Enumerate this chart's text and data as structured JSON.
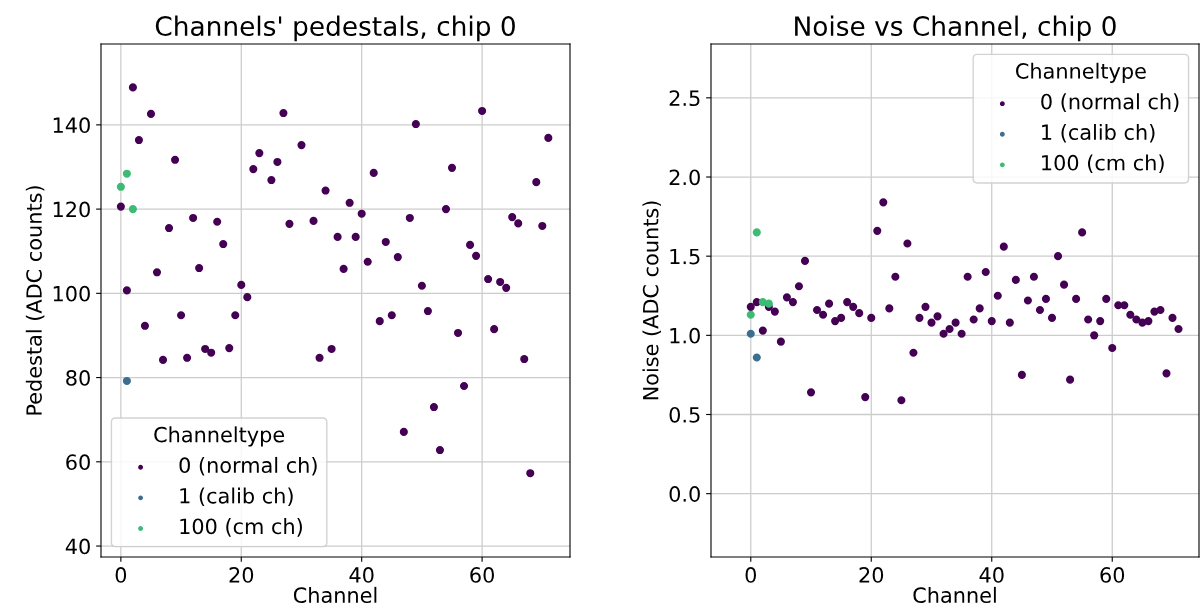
{
  "chart_data": [
    {
      "type": "scatter",
      "title": "Channels' pedestals, chip 0",
      "xlabel": "Channel",
      "ylabel": "Pedestal (ADC counts)",
      "legend_title": "Channeltype",
      "legend": "bottom left",
      "grid": true,
      "marker": "circle",
      "xlim": [
        -3.3,
        74.6
      ],
      "xticks": [
        0,
        20,
        40,
        60
      ],
      "ylim": [
        37.4,
        159.2
      ],
      "yticks": [
        40,
        60,
        80,
        100,
        120,
        140
      ],
      "series": [
        {
          "name": "0 (normal ch)",
          "color": "#440154",
          "x": [
            0,
            1,
            2,
            3,
            4,
            5,
            6,
            7,
            8,
            9,
            10,
            11,
            12,
            13,
            14,
            15,
            16,
            17,
            18,
            19,
            20,
            21,
            22,
            23,
            25,
            26,
            27,
            28,
            30,
            32,
            33,
            34,
            35,
            36,
            37,
            38,
            39,
            40,
            41,
            42,
            43,
            44,
            45,
            46,
            47,
            48,
            49,
            50,
            51,
            52,
            53,
            54,
            55,
            56,
            57,
            58,
            59,
            60,
            61,
            62,
            63,
            64,
            65,
            66,
            67,
            68,
            69,
            70,
            71
          ],
          "values": [
            120.6,
            100.7,
            148.9,
            136.4,
            92.3,
            142.6,
            105,
            84.2,
            115.5,
            131.7,
            94.8,
            84.7,
            117.9,
            106,
            86.8,
            85.9,
            117,
            111.7,
            87,
            94.8,
            102,
            99.1,
            129.5,
            133.3,
            126.9,
            131.2,
            142.8,
            116.5,
            135.2,
            117.2,
            84.7,
            124.4,
            86.8,
            113.4,
            105.8,
            121.5,
            113.4,
            118.9,
            107.5,
            128.6,
            93.4,
            112.2,
            94.8,
            108.6,
            67.1,
            117.9,
            140.2,
            101.8,
            95.8,
            73,
            62.8,
            120,
            129.8,
            90.6,
            78,
            111.5,
            108.9,
            143.3,
            103.4,
            91.5,
            102.7,
            101.3,
            118.1,
            116.6,
            84.4,
            57.3,
            126.4,
            116,
            136.9
          ]
        },
        {
          "name": "1 (calib ch)",
          "color": "#3b6e8f",
          "x": [
            1
          ],
          "values": [
            79.2
          ]
        },
        {
          "name": "100 (cm ch)",
          "color": "#3cbb75",
          "x": [
            0,
            1,
            2
          ],
          "values": [
            125.3,
            128.4,
            120
          ]
        }
      ]
    },
    {
      "type": "scatter",
      "title": "Noise vs Channel, chip 0",
      "xlabel": "Channel",
      "ylabel": "Noise (ADC counts)",
      "legend_title": "Channeltype",
      "legend": "top right",
      "grid": true,
      "marker": "circle",
      "xlim": [
        -6.6,
        74.4
      ],
      "xticks": [
        0,
        20,
        40,
        60
      ],
      "ylim": [
        -0.4,
        2.84
      ],
      "yticks": [
        {
          "value": 0,
          "label": "0.0"
        },
        {
          "value": 0.5,
          "label": "0.5"
        },
        {
          "value": 1,
          "label": "1.0"
        },
        {
          "value": 1.5,
          "label": "1.5"
        },
        {
          "value": 2,
          "label": "2.0"
        },
        {
          "value": 2.5,
          "label": "2.5"
        }
      ],
      "series": [
        {
          "name": "0 (normal ch)",
          "color": "#440154",
          "x": [
            0,
            1,
            2,
            3,
            4,
            5,
            6,
            7,
            8,
            9,
            10,
            11,
            12,
            13,
            14,
            15,
            16,
            17,
            18,
            19,
            20,
            21,
            22,
            23,
            24,
            25,
            26,
            27,
            28,
            29,
            30,
            31,
            32,
            33,
            34,
            35,
            36,
            37,
            38,
            39,
            40,
            41,
            42,
            43,
            44,
            45,
            46,
            47,
            48,
            49,
            50,
            51,
            52,
            53,
            54,
            55,
            56,
            57,
            58,
            59,
            60,
            61,
            62,
            63,
            64,
            65,
            66,
            67,
            68,
            69,
            70,
            71
          ],
          "values": [
            1.18,
            1.21,
            1.03,
            1.18,
            1.15,
            0.96,
            1.24,
            1.21,
            1.31,
            1.47,
            0.64,
            1.16,
            1.13,
            1.2,
            1.09,
            1.11,
            1.21,
            1.18,
            1.14,
            0.61,
            1.11,
            1.66,
            1.84,
            1.17,
            1.37,
            0.59,
            1.58,
            0.89,
            1.11,
            1.18,
            1.08,
            1.12,
            1.01,
            1.04,
            1.08,
            1.01,
            1.37,
            1.1,
            1.17,
            1.4,
            1.09,
            1.25,
            1.56,
            1.08,
            1.35,
            0.75,
            1.22,
            1.37,
            1.16,
            1.23,
            1.11,
            1.5,
            1.32,
            0.72,
            1.23,
            1.65,
            1.1,
            1,
            1.09,
            1.23,
            0.92,
            1.19,
            1.19,
            1.13,
            1.1,
            1.08,
            1.09,
            1.15,
            1.16,
            0.76,
            1.11,
            1.04
          ]
        },
        {
          "name": "1 (calib ch)",
          "color": "#3b6e8f",
          "x": [
            0,
            1
          ],
          "values": [
            1.01,
            0.86
          ]
        },
        {
          "name": "100 (cm ch)",
          "color": "#3cbb75",
          "x": [
            0,
            1,
            2,
            3
          ],
          "values": [
            1.13,
            1.65,
            1.21,
            1.2
          ]
        }
      ]
    }
  ]
}
